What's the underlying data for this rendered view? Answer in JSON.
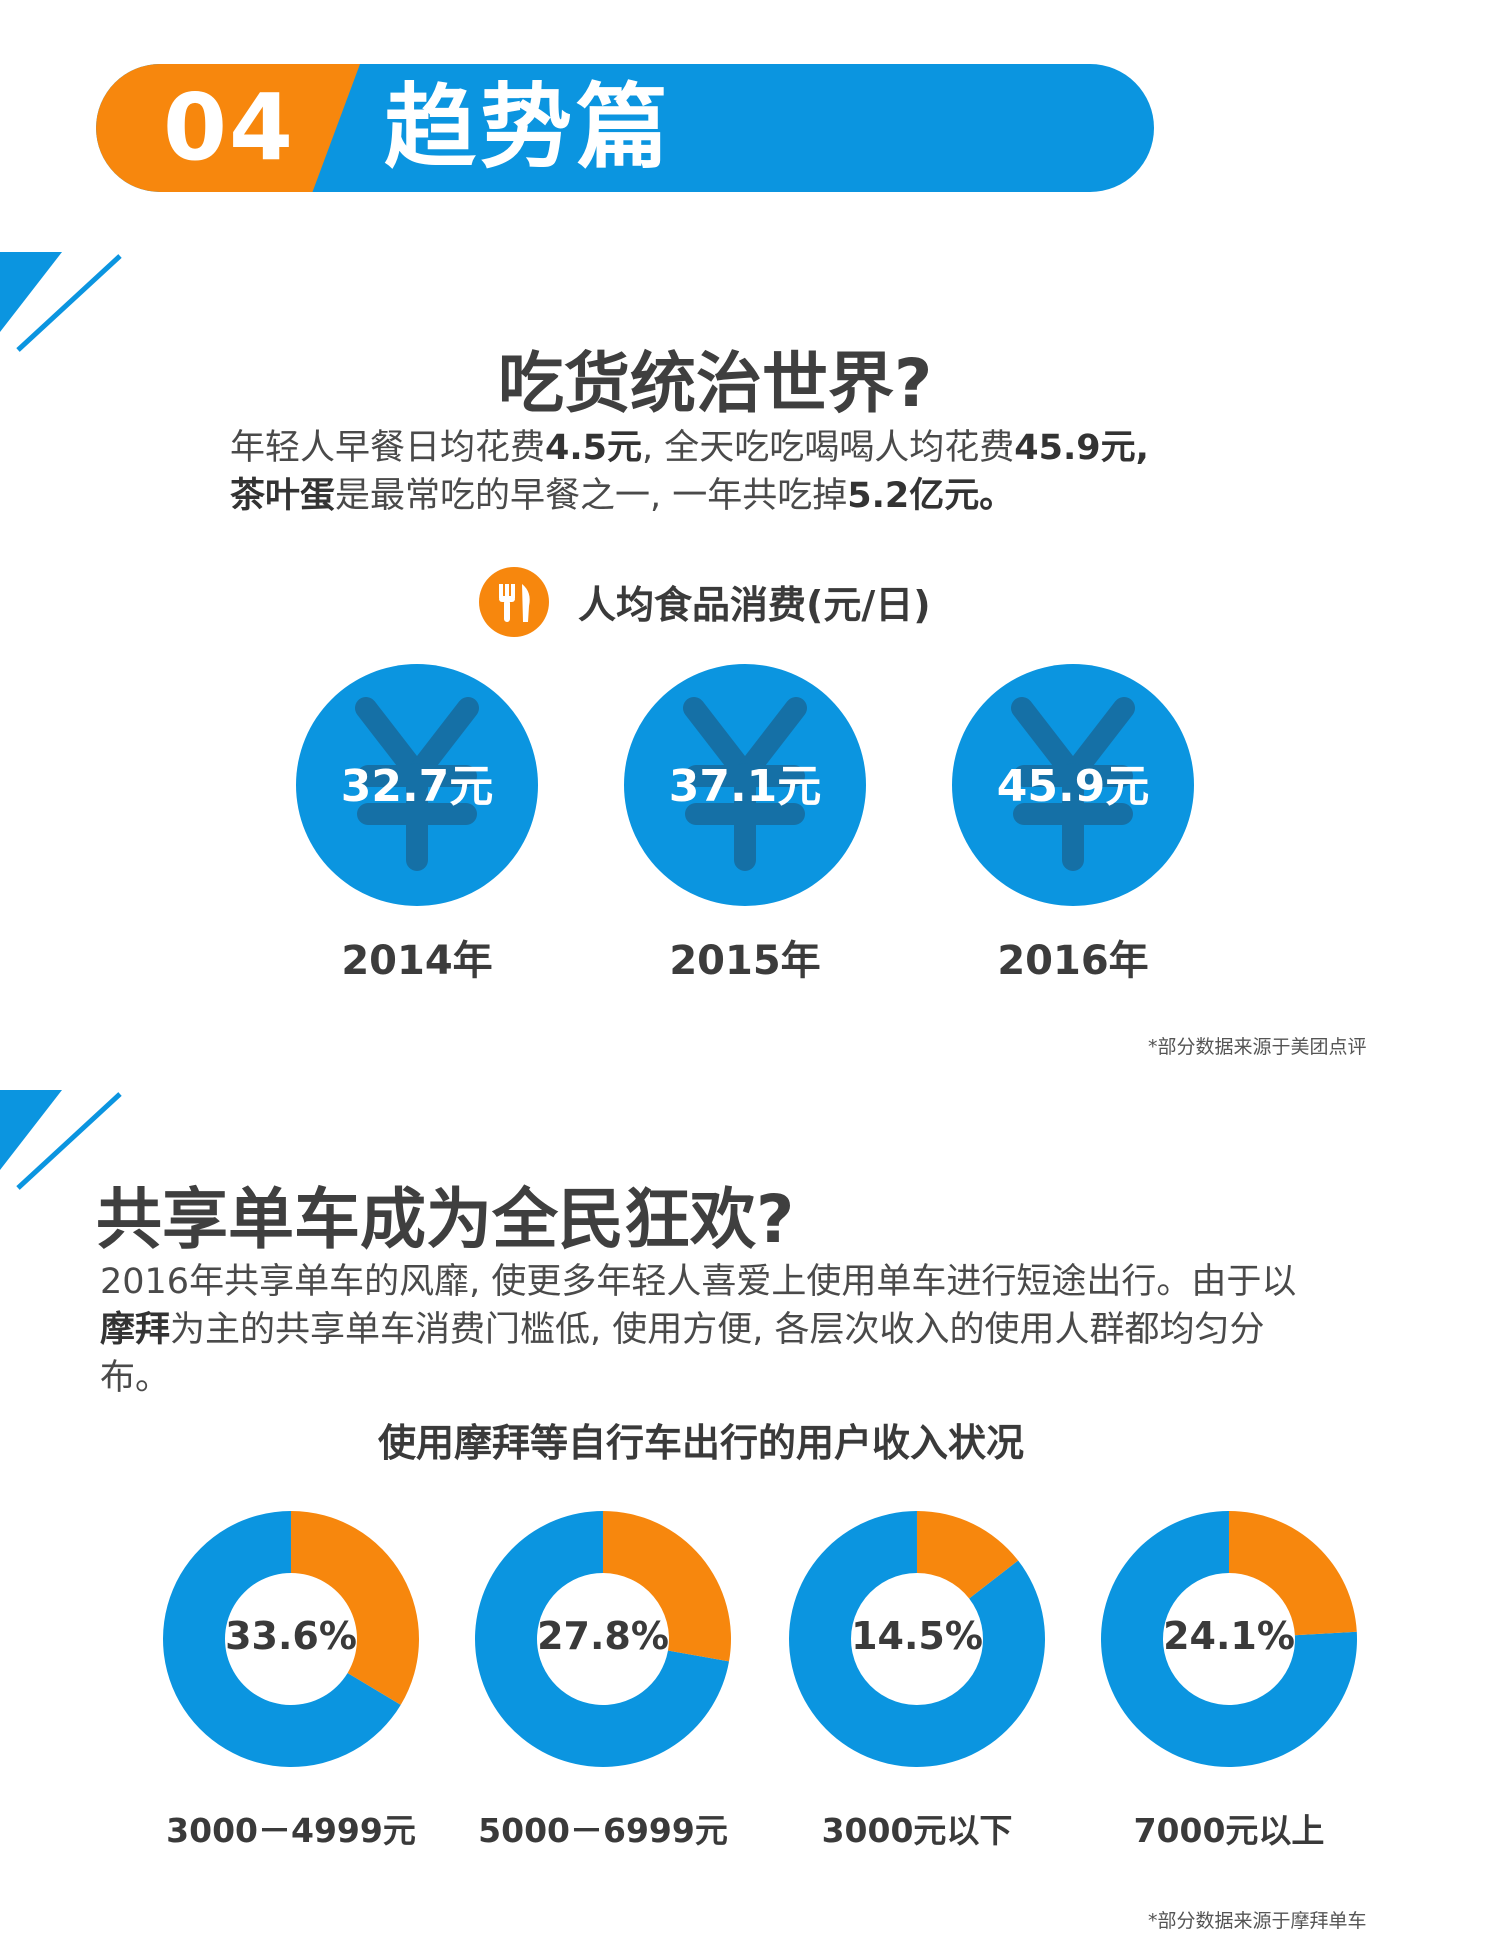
{
  "banner": {
    "number": "04",
    "title": "趋势篇"
  },
  "section1": {
    "title": "吃货统治世界?",
    "text": [
      {
        "t": "年轻人早餐日均花费",
        "b": false
      },
      {
        "t": "4.5元",
        "b": true
      },
      {
        "t": ", 全天吃吃喝喝人均花费",
        "b": false
      },
      {
        "t": "45.9元,",
        "b": true
      },
      {
        "br": true
      },
      {
        "t": "茶叶蛋",
        "b": true
      },
      {
        "t": "是最常吃的早餐之一, 一年共吃掉",
        "b": false
      },
      {
        "t": "5.2亿元。",
        "b": true
      }
    ],
    "source": "*部分数据来源于美团点评"
  },
  "chart_data": [
    {
      "type": "table",
      "title": "人均食品消费(元/日)",
      "categories": [
        "2014年",
        "2015年",
        "2016年"
      ],
      "values": [
        32.7,
        37.1,
        45.9
      ],
      "value_labels": [
        "32.7元",
        "37.1元",
        "45.9元"
      ],
      "symbol": "¥",
      "color": "#0b95e0"
    },
    {
      "type": "pie",
      "title": "使用摩拜等自行车出行的用户收入状况",
      "categories": [
        "3000－4999元",
        "5000－6999元",
        "3000元以下",
        "7000元以上"
      ],
      "values": [
        33.6,
        27.8,
        14.5,
        24.1
      ],
      "value_labels": [
        "33.6%",
        "27.8%",
        "14.5%",
        "24.1%"
      ],
      "highlight_color": "#f7870d",
      "rest_color": "#0b95e0"
    }
  ],
  "section2": {
    "title": "共享单车成为全民狂欢?",
    "text": [
      {
        "t": "2016年共享单车的风靡, 使更多年轻人喜爱上使用单车进行短途出行。由于以",
        "b": false
      },
      {
        "br": true
      },
      {
        "t": "摩拜",
        "b": true
      },
      {
        "t": "为主的共享单车消费门槛低, 使用方便, 各层次收入的使用人群都均匀分",
        "b": false
      },
      {
        "br": true
      },
      {
        "t": "布。",
        "b": false
      }
    ],
    "source": "*部分数据来源于摩拜单车"
  },
  "icons": {
    "food": "fork-knife-icon",
    "currency": "yuan-icon",
    "decor": "stripe-decoration"
  }
}
